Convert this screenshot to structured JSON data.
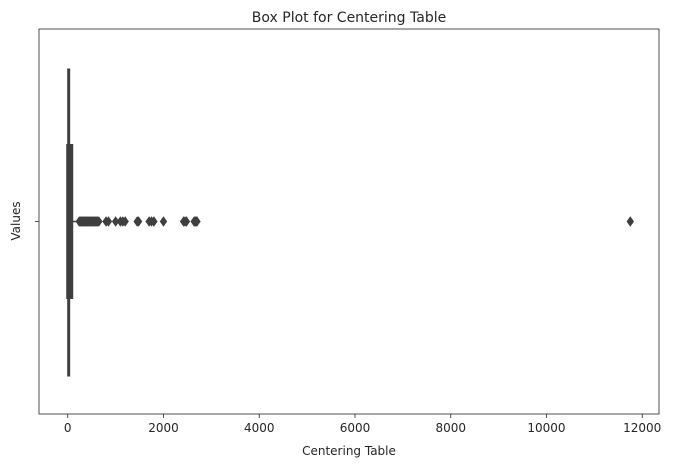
{
  "chart_data": {
    "type": "box",
    "orientation": "horizontal",
    "title": "Box Plot for Centering Table",
    "xlabel": "Centering Table",
    "ylabel": "Values",
    "xlim": [
      -600,
      12350
    ],
    "x_ticks": [
      0,
      2000,
      4000,
      6000,
      8000,
      10000,
      12000
    ],
    "grid": false,
    "box_color": "#3f3f3f",
    "box": {
      "min": 0,
      "q1": 0,
      "median": 20,
      "q3": 90,
      "whisker_low": 0,
      "whisker_high": 225
    },
    "outliers": [
      240,
      260,
      280,
      300,
      320,
      340,
      360,
      380,
      400,
      420,
      440,
      460,
      480,
      500,
      520,
      540,
      560,
      580,
      600,
      620,
      650,
      800,
      850,
      1000,
      1100,
      1150,
      1200,
      1450,
      1480,
      1700,
      1750,
      1800,
      2000,
      2420,
      2450,
      2480,
      2640,
      2660,
      2680,
      2700,
      11750
    ]
  }
}
